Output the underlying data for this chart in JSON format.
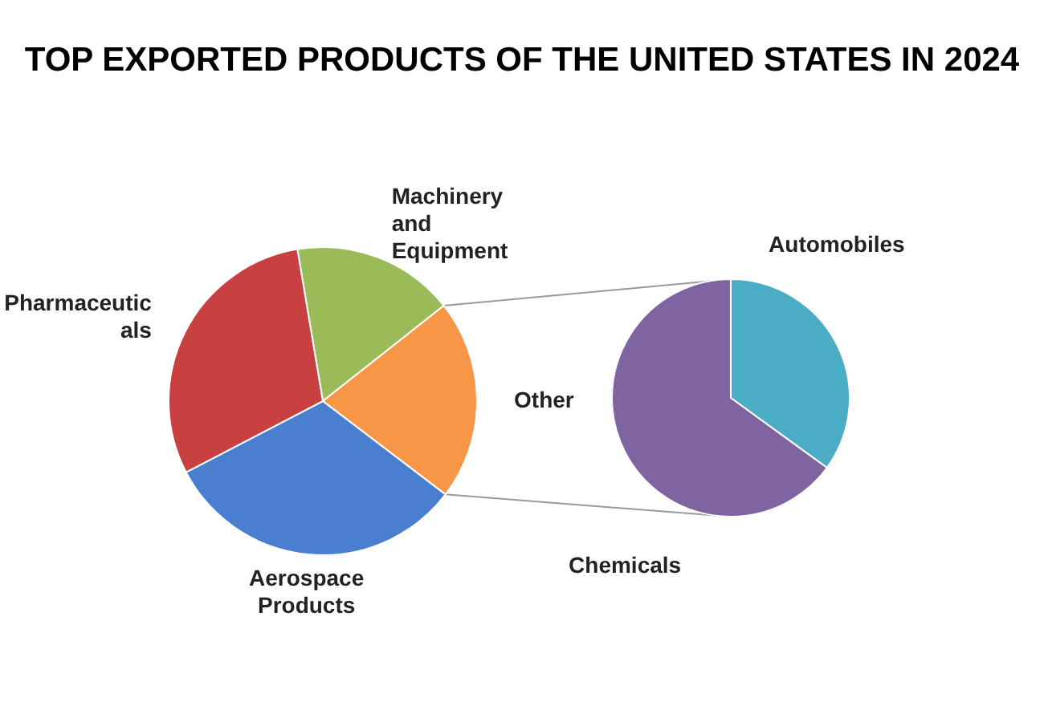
{
  "chart_data": [
    {
      "type": "pie",
      "title": "TOP EXPORTED PRODUCTS OF THE UNITED STATES IN 2024",
      "categories": [
        "Machinery and Equipment",
        "Other",
        "Aerospace Products",
        "Pharmaceuticals"
      ],
      "values": [
        17,
        21,
        32,
        30
      ],
      "colors": [
        "#9bbb59",
        "#f79646",
        "#4a7fd0",
        "#c94040"
      ]
    },
    {
      "type": "pie",
      "categories": [
        "Automobiles",
        "Chemicals"
      ],
      "values": [
        35,
        65
      ],
      "colors": [
        "#4bacc6",
        "#8064a2"
      ]
    }
  ]
}
